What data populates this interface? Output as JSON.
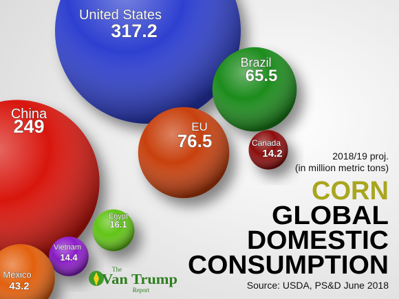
{
  "chart_data": {
    "type": "bubble",
    "categories": [
      "United States",
      "China",
      "Brazil",
      "EU",
      "Canada",
      "Egypt",
      "Vietnam",
      "Mexico"
    ],
    "values": [
      317.2,
      249,
      65.5,
      76.5,
      14.2,
      16.1,
      14.4,
      43.2
    ],
    "colors": [
      "#2f3fd0",
      "#d8120e",
      "#1c8c1c",
      "#c8400f",
      "#8c0c0c",
      "#62c414",
      "#8e1fcc",
      "#e2600f"
    ],
    "subtitle": [
      "2018/19 proj.",
      "(in million metric tons)"
    ],
    "title": [
      "CORN",
      "GLOBAL",
      "DOMESTIC",
      "CONSUMPTION"
    ],
    "source": "Source: USDA, PS&D June 2018"
  },
  "logo": {
    "top": "The",
    "name": "Van Trump",
    "bottom": "Report"
  }
}
